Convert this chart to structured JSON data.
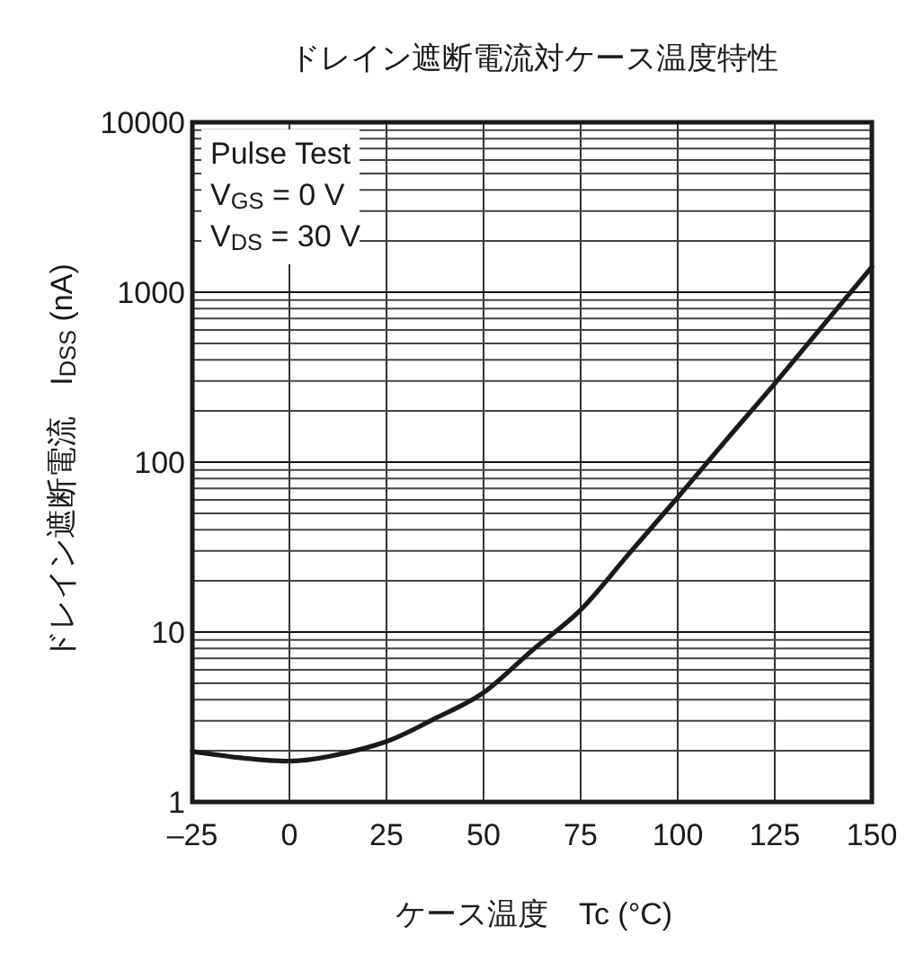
{
  "chart_data": {
    "type": "line",
    "title": "ドレイン遮断電流対ケース温度特性",
    "xlabel": "ケース温度　Tc  (°C)",
    "ylabel": "ドレイン遮断電流　I$_{DSS}$  (nA)",
    "annotations": [
      "Pulse Test",
      "V$_{GS}$ = 0 V",
      "V$_{DS}$ = 30 V"
    ],
    "x": [
      -25,
      -12.5,
      0,
      10,
      25,
      37.5,
      50,
      62.5,
      75,
      87.5,
      100,
      112.5,
      125,
      137.5,
      150
    ],
    "series": [
      {
        "color": "#1a1a1a",
        "values": [
          1.98,
          1.82,
          1.74,
          1.85,
          2.27,
          3.1,
          4.4,
          7.8,
          13.5,
          29,
          62,
          135,
          290,
          640,
          1410
        ]
      }
    ],
    "xlim": [
      -25,
      150
    ],
    "ylim": [
      1,
      10000
    ],
    "xticks": [
      {
        "value": -25,
        "label": "–25"
      },
      0,
      25,
      50,
      75,
      100,
      125,
      150
    ],
    "yticks": [
      1,
      10,
      100,
      1000,
      10000
    ],
    "log": "y",
    "grid": true,
    "marker": "none",
    "line_style": "solid"
  }
}
